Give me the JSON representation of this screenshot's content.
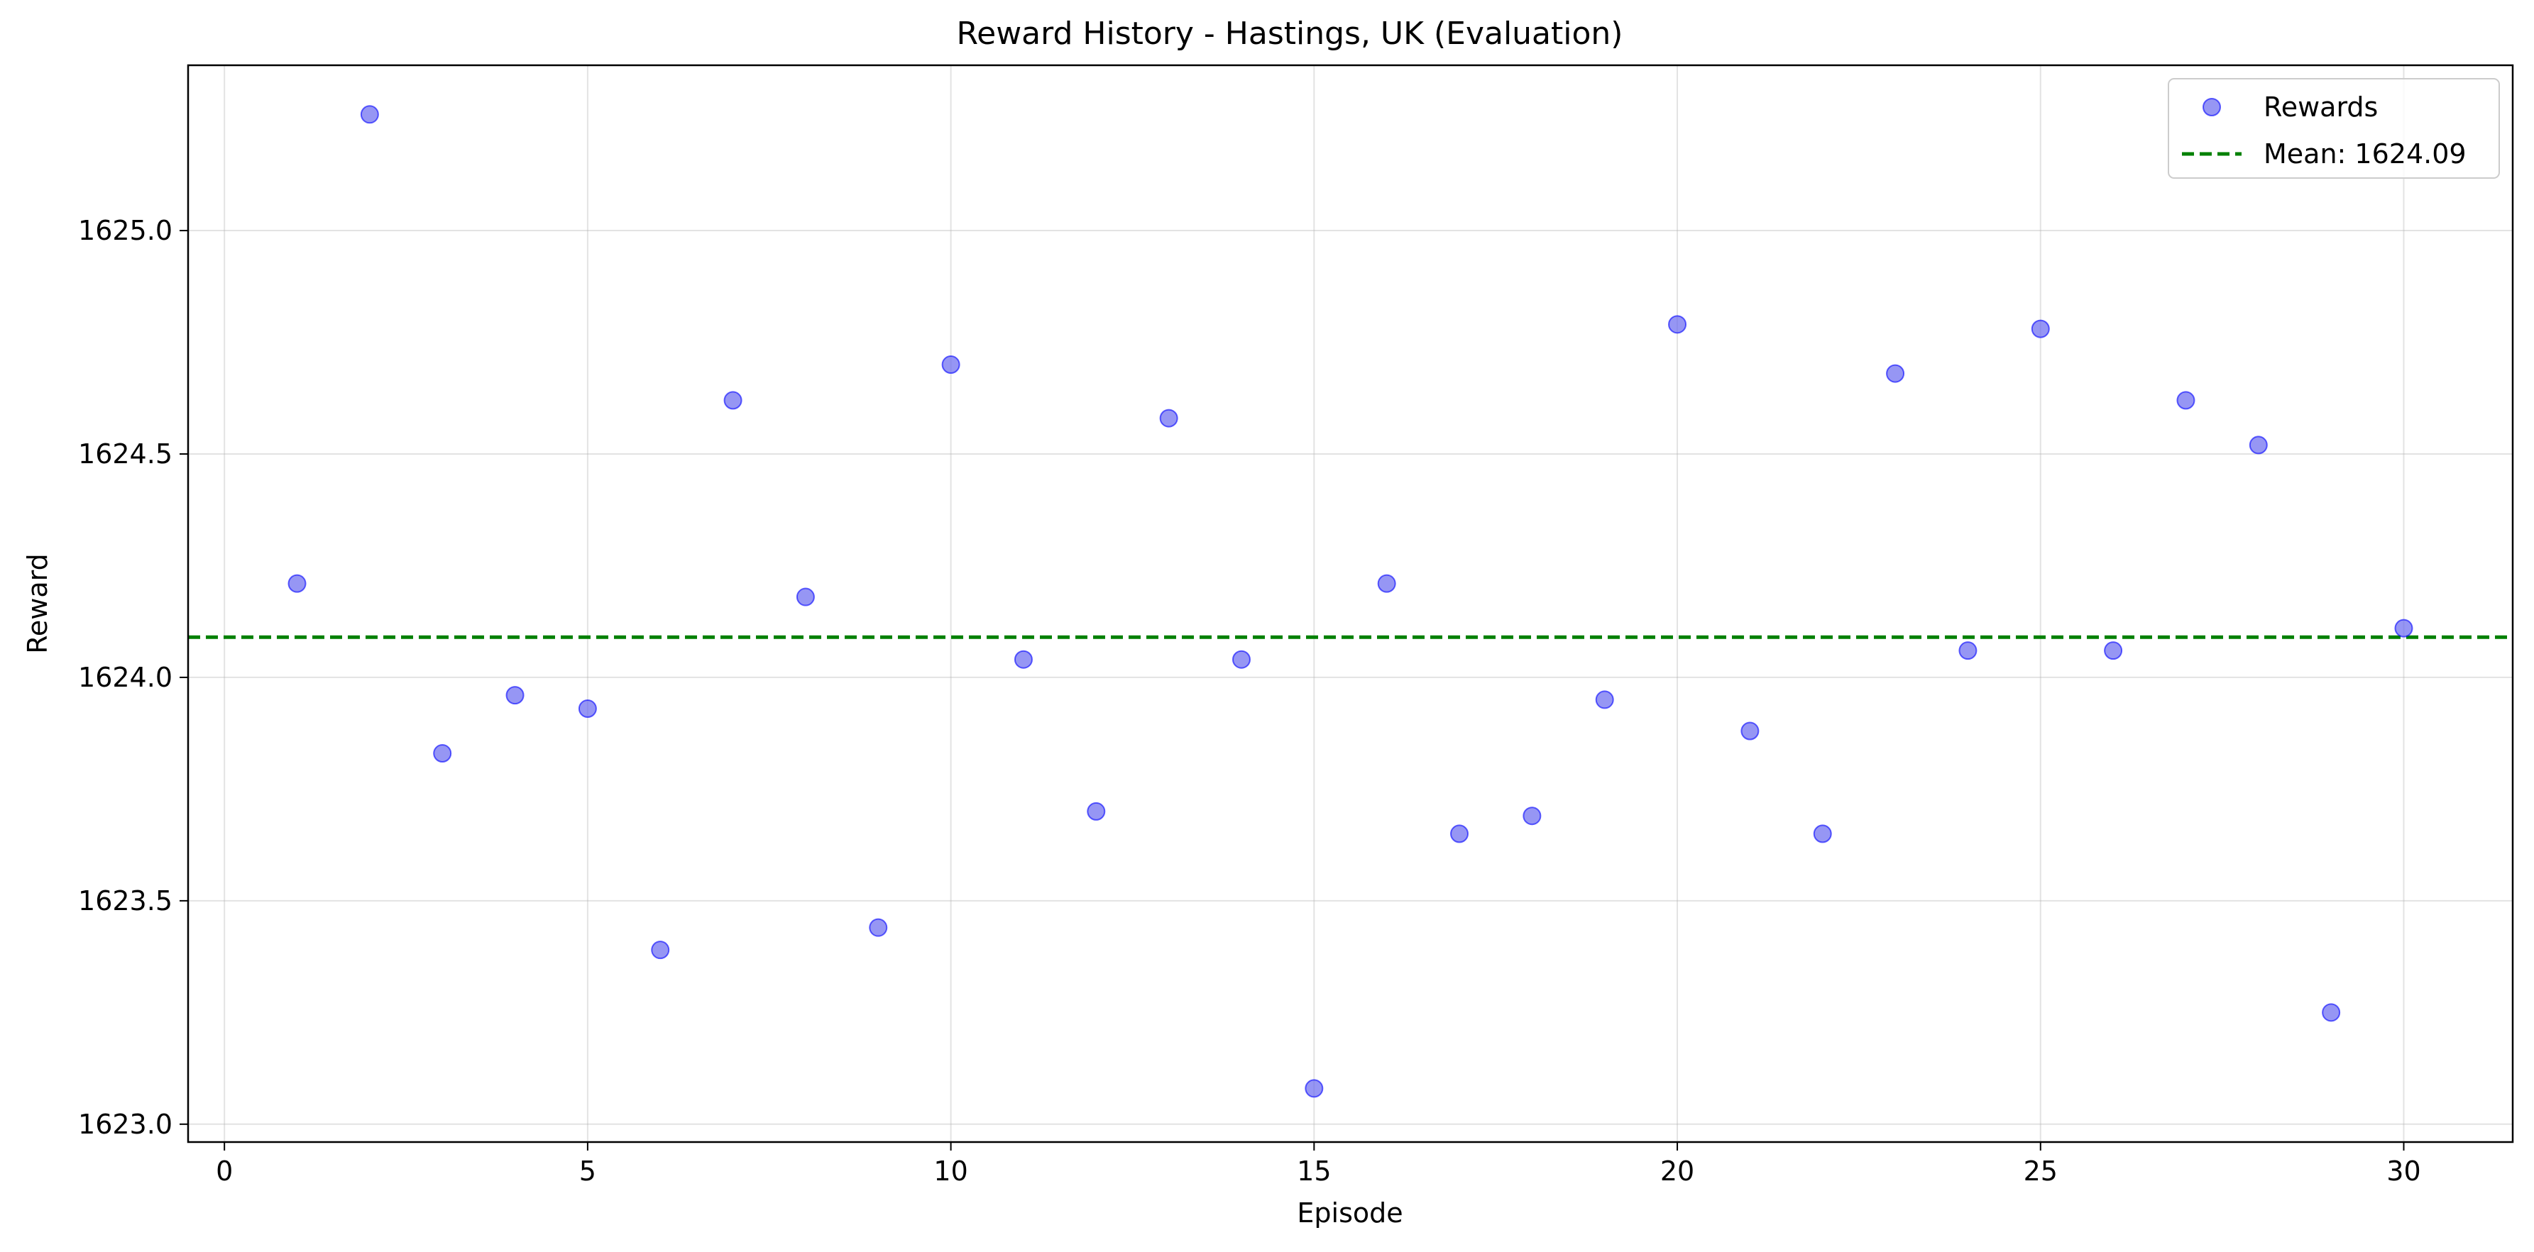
{
  "chart_data": {
    "type": "scatter",
    "title": "Reward History - Hastings, UK (Evaluation)",
    "xlabel": "Episode",
    "ylabel": "Reward",
    "xlim": [
      -0.5,
      31.5
    ],
    "ylim": [
      1622.96,
      1625.37
    ],
    "xticks": [
      0,
      5,
      10,
      15,
      20,
      25,
      30
    ],
    "yticks": [
      1623.0,
      1623.5,
      1624.0,
      1624.5,
      1625.0
    ],
    "ytick_labels": [
      "1623.0",
      "1623.5",
      "1624.0",
      "1624.5",
      "1625.0"
    ],
    "grid": true,
    "legend_position": "top-right",
    "series": [
      {
        "name": "Rewards",
        "kind": "scatter",
        "color": "#6a6af0",
        "x": [
          1,
          2,
          3,
          4,
          5,
          6,
          7,
          8,
          9,
          10,
          11,
          12,
          13,
          14,
          15,
          16,
          17,
          18,
          19,
          20,
          21,
          22,
          23,
          24,
          25,
          26,
          27,
          28,
          29,
          30
        ],
        "y": [
          1624.21,
          1625.26,
          1623.83,
          1623.96,
          1623.93,
          1623.39,
          1624.62,
          1624.18,
          1623.44,
          1624.7,
          1624.04,
          1623.7,
          1624.58,
          1624.04,
          1623.08,
          1624.21,
          1623.65,
          1623.69,
          1623.95,
          1624.79,
          1623.88,
          1623.65,
          1624.68,
          1624.06,
          1624.78,
          1624.06,
          1624.62,
          1624.52,
          1623.25,
          1624.11
        ]
      }
    ],
    "mean_line": {
      "label": "Mean: 1624.09",
      "value": 1624.09,
      "color": "#008000",
      "style": "dashed"
    }
  }
}
